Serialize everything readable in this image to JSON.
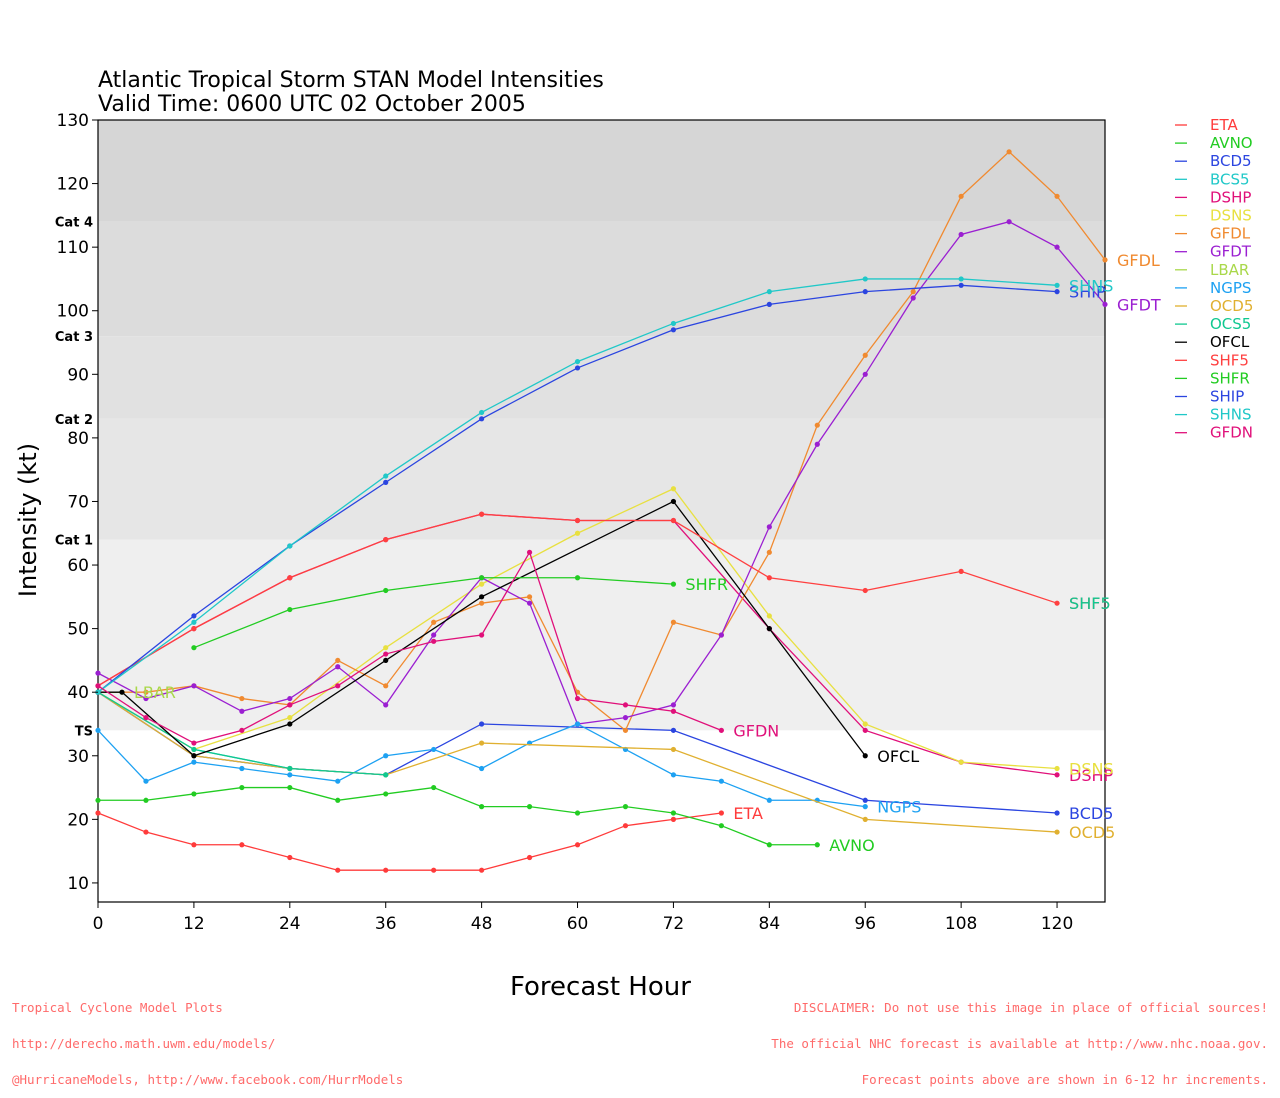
{
  "chart_data": {
    "type": "line",
    "title": "Atlantic Tropical Storm STAN Model Intensities",
    "subtitle": "Valid Time: 0600 UTC 02 October 2005",
    "xlabel": "Forecast Hour",
    "ylabel": "Intensity (kt)",
    "xlim": [
      0,
      126
    ],
    "ylim": [
      7,
      130
    ],
    "xticks": [
      0,
      12,
      24,
      36,
      48,
      60,
      72,
      84,
      96,
      108,
      120
    ],
    "yticks": [
      10,
      20,
      30,
      40,
      50,
      60,
      70,
      80,
      90,
      100,
      110,
      120,
      130
    ],
    "categories": [
      {
        "label": "TS",
        "min": 34,
        "max": 64,
        "color": "#efefef"
      },
      {
        "label": "Cat 1",
        "min": 64,
        "max": 83,
        "color": "#e6e6e6"
      },
      {
        "label": "Cat 2",
        "min": 83,
        "max": 96,
        "color": "#e1e1e1"
      },
      {
        "label": "Cat 3",
        "min": 96,
        "max": 114,
        "color": "#dcdcdc"
      },
      {
        "label": "Cat 4",
        "min": 114,
        "max": 130,
        "color": "#d6d6d6"
      }
    ],
    "legend_position": "right",
    "series": [
      {
        "name": "ETA",
        "color": "#ff3b3b",
        "label": "ETA",
        "points": [
          [
            0,
            21
          ],
          [
            6,
            18
          ],
          [
            12,
            16
          ],
          [
            18,
            16
          ],
          [
            24,
            14
          ],
          [
            30,
            12
          ],
          [
            36,
            12
          ],
          [
            42,
            12
          ],
          [
            48,
            12
          ],
          [
            54,
            14
          ],
          [
            60,
            16
          ],
          [
            66,
            19
          ],
          [
            72,
            20
          ],
          [
            78,
            21
          ]
        ]
      },
      {
        "name": "AVNO",
        "color": "#22cc22",
        "label": "AVNO",
        "points": [
          [
            0,
            23
          ],
          [
            6,
            23
          ],
          [
            12,
            24
          ],
          [
            18,
            25
          ],
          [
            24,
            25
          ],
          [
            30,
            23
          ],
          [
            36,
            24
          ],
          [
            42,
            25
          ],
          [
            48,
            22
          ],
          [
            54,
            22
          ],
          [
            60,
            21
          ],
          [
            66,
            22
          ],
          [
            72,
            21
          ],
          [
            78,
            19
          ],
          [
            84,
            16
          ],
          [
            90,
            16
          ]
        ]
      },
      {
        "name": "BCD5",
        "color": "#2b45e0",
        "label": "BCD5",
        "points": [
          [
            0,
            40
          ],
          [
            12,
            30
          ],
          [
            24,
            28
          ],
          [
            36,
            27
          ],
          [
            48,
            35
          ],
          [
            72,
            34
          ],
          [
            96,
            23
          ],
          [
            120,
            21
          ]
        ]
      },
      {
        "name": "BCS5",
        "color": "#20c8c8",
        "label": "",
        "points": [
          [
            0,
            40
          ],
          [
            12,
            31
          ],
          [
            24,
            28
          ],
          [
            36,
            27
          ]
        ]
      },
      {
        "name": "DSHP",
        "color": "#e0107a",
        "label": "DSHP",
        "points": [
          [
            0,
            41
          ],
          [
            12,
            50
          ],
          [
            24,
            58
          ],
          [
            36,
            64
          ],
          [
            48,
            68
          ],
          [
            60,
            67
          ],
          [
            72,
            67
          ],
          [
            84,
            50
          ],
          [
            96,
            34
          ],
          [
            108,
            29
          ],
          [
            120,
            27
          ]
        ]
      },
      {
        "name": "DSNS",
        "color": "#e8e040",
        "label": "DSNS",
        "points": [
          [
            0,
            40
          ],
          [
            12,
            31
          ],
          [
            24,
            36
          ],
          [
            36,
            47
          ],
          [
            48,
            57
          ],
          [
            60,
            65
          ],
          [
            72,
            72
          ],
          [
            84,
            52
          ],
          [
            96,
            35
          ],
          [
            108,
            29
          ],
          [
            120,
            28
          ]
        ]
      },
      {
        "name": "GFDL",
        "color": "#f08a30",
        "label": "GFDL",
        "points": [
          [
            0,
            40
          ],
          [
            6,
            40
          ],
          [
            12,
            41
          ],
          [
            18,
            39
          ],
          [
            24,
            38
          ],
          [
            30,
            45
          ],
          [
            36,
            41
          ],
          [
            42,
            51
          ],
          [
            48,
            54
          ],
          [
            54,
            55
          ],
          [
            60,
            40
          ],
          [
            66,
            34
          ],
          [
            72,
            51
          ],
          [
            78,
            49
          ],
          [
            84,
            62
          ],
          [
            90,
            82
          ],
          [
            96,
            93
          ],
          [
            102,
            103
          ],
          [
            108,
            118
          ],
          [
            114,
            125
          ],
          [
            120,
            118
          ],
          [
            126,
            108
          ]
        ]
      },
      {
        "name": "GFDT",
        "color": "#9b1fd1",
        "label": "GFDT",
        "points": [
          [
            0,
            43
          ],
          [
            6,
            39
          ],
          [
            12,
            41
          ],
          [
            18,
            37
          ],
          [
            24,
            39
          ],
          [
            30,
            44
          ],
          [
            36,
            38
          ],
          [
            42,
            49
          ],
          [
            48,
            58
          ],
          [
            54,
            54
          ],
          [
            60,
            35
          ],
          [
            66,
            36
          ],
          [
            72,
            38
          ],
          [
            78,
            49
          ],
          [
            84,
            66
          ],
          [
            90,
            79
          ],
          [
            96,
            90
          ],
          [
            102,
            102
          ],
          [
            108,
            112
          ],
          [
            114,
            114
          ],
          [
            120,
            110
          ],
          [
            126,
            101
          ]
        ]
      },
      {
        "name": "LBAR",
        "color": "#a9d84a",
        "label": "LBAR",
        "points": [
          [
            0,
            40
          ],
          [
            3,
            40
          ]
        ]
      },
      {
        "name": "NGPS",
        "color": "#1da1f2",
        "label": "NGPS",
        "points": [
          [
            0,
            34
          ],
          [
            6,
            26
          ],
          [
            12,
            29
          ],
          [
            18,
            28
          ],
          [
            24,
            27
          ],
          [
            30,
            26
          ],
          [
            36,
            30
          ],
          [
            42,
            31
          ],
          [
            48,
            28
          ],
          [
            54,
            32
          ],
          [
            60,
            35
          ],
          [
            66,
            31
          ],
          [
            72,
            27
          ],
          [
            78,
            26
          ],
          [
            84,
            23
          ],
          [
            90,
            23
          ],
          [
            96,
            22
          ]
        ]
      },
      {
        "name": "OCD5",
        "color": "#e0b030",
        "label": "OCD5",
        "points": [
          [
            0,
            40
          ],
          [
            12,
            30
          ],
          [
            24,
            28
          ],
          [
            36,
            27
          ],
          [
            48,
            32
          ],
          [
            72,
            31
          ],
          [
            96,
            20
          ],
          [
            120,
            18
          ]
        ]
      },
      {
        "name": "OCS5",
        "color": "#10c890",
        "label": "",
        "points": [
          [
            0,
            40
          ],
          [
            12,
            31
          ],
          [
            24,
            28
          ],
          [
            36,
            27
          ]
        ]
      },
      {
        "name": "OFCL",
        "color": "#000000",
        "label": "OFCL",
        "points": [
          [
            0,
            40
          ],
          [
            3,
            40
          ],
          [
            12,
            30
          ],
          [
            24,
            35
          ],
          [
            36,
            45
          ],
          [
            48,
            55
          ],
          [
            72,
            70
          ],
          [
            84,
            50
          ],
          [
            96,
            30
          ]
        ]
      },
      {
        "name": "SHF5",
        "color": "#ff4040",
        "label": "SHF5",
        "points": [
          [
            0,
            41
          ],
          [
            12,
            50
          ],
          [
            24,
            58
          ],
          [
            36,
            64
          ],
          [
            48,
            68
          ],
          [
            60,
            67
          ],
          [
            72,
            67
          ],
          [
            84,
            58
          ],
          [
            96,
            56
          ],
          [
            108,
            59
          ],
          [
            120,
            54
          ]
        ]
      },
      {
        "name": "SHFR",
        "color": "#22cc22",
        "label": "SHFR",
        "points": [
          [
            12,
            47
          ],
          [
            24,
            53
          ],
          [
            36,
            56
          ],
          [
            48,
            58
          ],
          [
            60,
            58
          ],
          [
            72,
            57
          ]
        ]
      },
      {
        "name": "SHIP",
        "color": "#2b45e0",
        "label": "SHIP",
        "points": [
          [
            0,
            40
          ],
          [
            12,
            52
          ],
          [
            24,
            63
          ],
          [
            36,
            73
          ],
          [
            48,
            83
          ],
          [
            60,
            91
          ],
          [
            72,
            97
          ],
          [
            84,
            101
          ],
          [
            96,
            103
          ],
          [
            108,
            104
          ],
          [
            120,
            103
          ]
        ]
      },
      {
        "name": "SHNS",
        "color": "#20c8c8",
        "label": "SHNS",
        "points": [
          [
            0,
            40
          ],
          [
            12,
            51
          ],
          [
            24,
            63
          ],
          [
            36,
            74
          ],
          [
            48,
            84
          ],
          [
            60,
            92
          ],
          [
            72,
            98
          ],
          [
            84,
            103
          ],
          [
            96,
            105
          ],
          [
            108,
            105
          ],
          [
            120,
            104
          ]
        ]
      },
      {
        "name": "GFDN",
        "color": "#e0107a",
        "label": "GFDN",
        "points": [
          [
            0,
            41
          ],
          [
            6,
            36
          ],
          [
            12,
            32
          ],
          [
            18,
            34
          ],
          [
            24,
            38
          ],
          [
            30,
            41
          ],
          [
            36,
            46
          ],
          [
            42,
            48
          ],
          [
            48,
            49
          ],
          [
            54,
            62
          ],
          [
            60,
            39
          ],
          [
            66,
            38
          ],
          [
            72,
            37
          ],
          [
            78,
            34
          ]
        ]
      }
    ],
    "extra_series_label": {
      "text": "SHF5",
      "color": "#10c890",
      "x": 120,
      "y": 54
    }
  },
  "footer": {
    "left_lines": [
      "Tropical Cyclone Model Plots",
      "http://derecho.math.uwm.edu/models/",
      "@HurricaneModels, http://www.facebook.com/HurrModels"
    ],
    "right_lines": [
      "DISCLAIMER: Do not use this image in place of official sources!",
      "The official NHC forecast is available at http://www.nhc.noaa.gov.",
      "Forecast points above are shown in 6-12 hr increments."
    ]
  }
}
